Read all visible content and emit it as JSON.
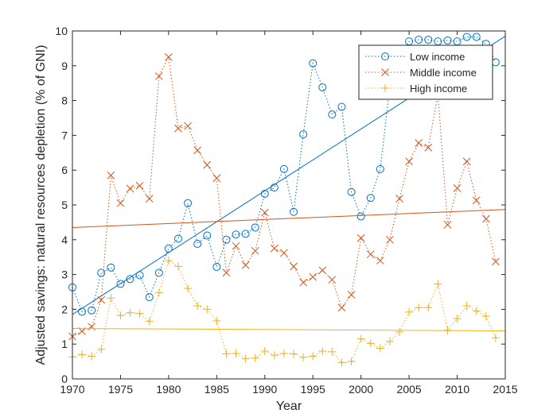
{
  "chart_data": {
    "type": "line",
    "title": "",
    "xlabel": "Year",
    "ylabel": "Adjusted savings: natural resources depletion (% of GNI)",
    "xlim": [
      1970,
      2015
    ],
    "ylim": [
      0,
      10
    ],
    "xticks": [
      1970,
      1975,
      1980,
      1985,
      1990,
      1995,
      2000,
      2005,
      2010,
      2015
    ],
    "yticks": [
      0,
      1,
      2,
      3,
      4,
      5,
      6,
      7,
      8,
      9,
      10
    ],
    "grid": false,
    "legend_position": "top-right",
    "x": [
      1970,
      1971,
      1972,
      1973,
      1974,
      1975,
      1976,
      1977,
      1978,
      1979,
      1980,
      1981,
      1982,
      1983,
      1984,
      1985,
      1986,
      1987,
      1988,
      1989,
      1990,
      1991,
      1992,
      1993,
      1994,
      1995,
      1996,
      1997,
      1998,
      1999,
      2000,
      2001,
      2002,
      2003,
      2004,
      2005,
      2006,
      2007,
      2008,
      2009,
      2010,
      2011,
      2012,
      2013,
      2014
    ],
    "series": [
      {
        "name": "Low income",
        "color": "#0072BD",
        "marker": "circle",
        "values": [
          2.63,
          1.93,
          1.97,
          3.05,
          3.2,
          2.73,
          2.87,
          2.98,
          2.35,
          3.05,
          3.75,
          4.03,
          5.05,
          3.88,
          4.12,
          3.22,
          4.0,
          4.15,
          4.17,
          4.35,
          5.32,
          5.5,
          6.03,
          4.8,
          7.03,
          9.07,
          8.38,
          7.6,
          7.82,
          5.37,
          4.67,
          5.2,
          6.03,
          8.4,
          9.13,
          9.7,
          9.75,
          9.75,
          9.7,
          9.73,
          9.7,
          9.83,
          9.83,
          9.63,
          9.1
        ],
        "trend": [
          1.85,
          9.85
        ]
      },
      {
        "name": "Middle income",
        "color": "#D95319",
        "marker": "x",
        "values": [
          1.22,
          1.37,
          1.5,
          2.27,
          5.85,
          5.05,
          5.47,
          5.55,
          5.18,
          8.7,
          9.25,
          7.2,
          7.27,
          6.57,
          6.15,
          5.77,
          3.05,
          3.82,
          3.27,
          3.68,
          4.78,
          3.75,
          3.62,
          3.23,
          2.77,
          2.93,
          3.12,
          2.85,
          2.05,
          2.42,
          4.05,
          3.58,
          3.4,
          4.0,
          5.18,
          6.25,
          6.78,
          6.65,
          8.2,
          4.43,
          5.48,
          6.25,
          5.13,
          4.6,
          3.37
        ],
        "trend": [
          4.35,
          4.87
        ]
      },
      {
        "name": "High income",
        "color": "#EDB120",
        "marker": "plus",
        "values": [
          0.63,
          0.7,
          0.65,
          0.85,
          2.32,
          1.82,
          1.9,
          1.88,
          1.65,
          2.48,
          3.4,
          3.23,
          2.6,
          2.1,
          2.0,
          1.67,
          0.72,
          0.73,
          0.58,
          0.6,
          0.8,
          0.68,
          0.73,
          0.72,
          0.62,
          0.65,
          0.8,
          0.78,
          0.47,
          0.5,
          1.15,
          1.02,
          0.88,
          1.08,
          1.35,
          1.92,
          2.05,
          2.05,
          2.73,
          1.4,
          1.73,
          2.1,
          1.95,
          1.8,
          1.18
        ],
        "trend": [
          1.45,
          1.38
        ]
      }
    ]
  }
}
